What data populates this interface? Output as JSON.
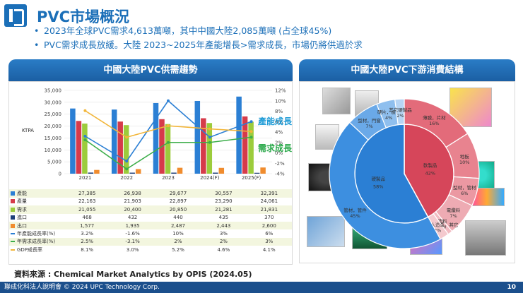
{
  "header": {
    "title": "PVC市場概況"
  },
  "bullets": [
    "2023年全球PVC需求4,613萬噸，其中中國大陸2,085萬噸 (占全球45%)",
    "PVC需求成長放緩。大陸 2023~2025年產能增長>需求成長，市場仍將供過於求"
  ],
  "left_panel": {
    "title": "中國大陸PVC供需趨勢"
  },
  "right_panel": {
    "title": "中國大陸PVC下游消費結構"
  },
  "source": "資料來源 : Chemical Market Analytics by OPIS (2024.05)",
  "footer": {
    "text": "聯成化科法人說明會 © 2024 UPC Technology Corp.",
    "page": "10"
  },
  "chart_data": [
    {
      "type": "bar",
      "ylabel": "KTPA",
      "categories": [
        "2021",
        "2022",
        "2023",
        "2024(F)",
        "2025(F)"
      ],
      "ylim": [
        0,
        35000
      ],
      "y2lim": [
        -4,
        12
      ],
      "yticks": [
        "35,000",
        "30,000",
        "25,000",
        "20,000",
        "15,000",
        "10,000",
        "5,000",
        "0"
      ],
      "y2ticks": [
        "12%",
        "10%",
        "8%",
        "6%",
        "4%",
        "2%",
        "0%",
        "-2%",
        "-4%"
      ],
      "series": [
        {
          "name": "產能",
          "color": "#2b7fd4",
          "kind": "bar",
          "values": [
            27385,
            26938,
            29677,
            30557,
            32391
          ],
          "labels": [
            "27,385",
            "26,938",
            "29,677",
            "30,557",
            "32,391"
          ]
        },
        {
          "name": "產量",
          "color": "#d63b4a",
          "kind": "bar",
          "values": [
            22163,
            21903,
            22897,
            23290,
            24061
          ],
          "labels": [
            "22,163",
            "21,903",
            "22,897",
            "23,290",
            "24,061"
          ]
        },
        {
          "name": "需求",
          "color": "#9ccc3c",
          "kind": "bar",
          "values": [
            21055,
            20400,
            20850,
            21281,
            21831
          ],
          "labels": [
            "21,055",
            "20,400",
            "20,850",
            "21,281",
            "21,831"
          ]
        },
        {
          "name": "進口",
          "color": "#1f3f78",
          "kind": "bar",
          "values": [
            468,
            432,
            440,
            435,
            370
          ],
          "labels": [
            "468",
            "432",
            "440",
            "435",
            "370"
          ]
        },
        {
          "name": "出口",
          "color": "#f08c2e",
          "kind": "bar",
          "values": [
            1577,
            1935,
            2487,
            2443,
            2600
          ],
          "labels": [
            "1,577",
            "1,935",
            "2,487",
            "2,443",
            "2,600"
          ]
        },
        {
          "name": "年產能成長率(%)",
          "color": "#2b7fd4",
          "kind": "line",
          "values": [
            3.2,
            -1.6,
            10,
            3,
            6
          ],
          "labels": [
            "3.2%",
            "-1.6%",
            "10%",
            "3%",
            "6%"
          ]
        },
        {
          "name": "年需求成長率(%)",
          "color": "#3cae4a",
          "kind": "line",
          "values": [
            2.5,
            -3.1,
            2,
            2,
            3
          ],
          "labels": [
            "2.5%",
            "-3.1%",
            "2%",
            "2%",
            "3%"
          ]
        },
        {
          "name": "GDP成長率",
          "color": "#f2b63a",
          "kind": "line",
          "values": [
            8.1,
            3,
            5.2,
            4.6,
            4.1
          ],
          "labels": [
            "8.1%",
            "3.0%",
            "5.2%",
            "4.6%",
            "4.1%"
          ]
        }
      ],
      "annotations": [
        {
          "text": "產能成長率",
          "color": "#1f9bd6"
        },
        {
          "text": "需求成長率",
          "color": "#2aa84a"
        }
      ]
    },
    {
      "type": "pie",
      "inner": [
        {
          "label": "硬製品",
          "pct": "58%",
          "value": 58,
          "color": "#2b7fd4"
        },
        {
          "label": "軟製品",
          "pct": "42%",
          "value": 42,
          "color": "#d6465a"
        }
      ],
      "outer": [
        {
          "label": "管材，管件",
          "pct": "45%",
          "value": 45,
          "color": "#3d8fe0"
        },
        {
          "label": "型材，門窗",
          "pct": "7%",
          "value": 7,
          "color": "#6aa9e8"
        },
        {
          "label": "硬片，板材",
          "pct": "4%",
          "value": 4,
          "color": "#8fbfee"
        },
        {
          "label": "其它硬製品",
          "pct": "2%",
          "value": 2,
          "color": "#b7d5f4"
        },
        {
          "label": "薄膜，片材",
          "pct": "16%",
          "value": 16,
          "color": "#e36b7a"
        },
        {
          "label": "地板",
          "pct": "10%",
          "value": 10,
          "color": "#e8838f"
        },
        {
          "label": "型材，管材",
          "pct": "6%",
          "value": 6,
          "color": "#eb98a2"
        },
        {
          "label": "電纜料",
          "pct": "7%",
          "value": 7,
          "color": "#eeabb3"
        },
        {
          "label": "塗料",
          "pct": "1%",
          "value": 1,
          "color": "#f1bac1"
        },
        {
          "label": "鞋料，人造革，其它",
          "pct": "2%",
          "value": 2,
          "color": "#f4c9ce"
        }
      ]
    }
  ]
}
